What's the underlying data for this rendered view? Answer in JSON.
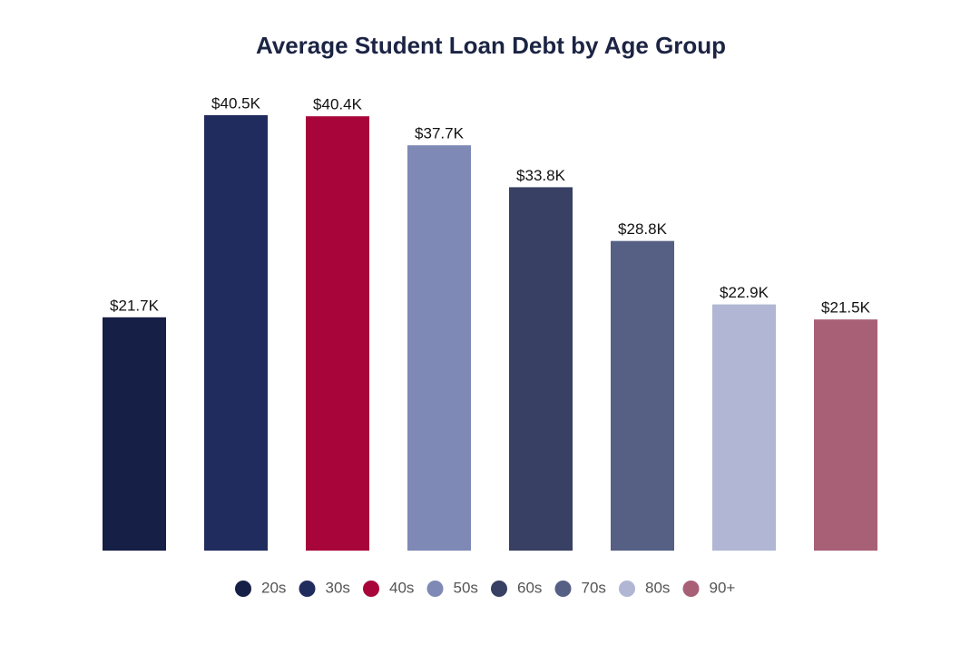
{
  "chart_data": {
    "type": "bar",
    "title": "Average Student Loan Debt by Age Group",
    "categories": [
      "20s",
      "30s",
      "40s",
      "50s",
      "60s",
      "70s",
      "80s",
      "90+"
    ],
    "values": [
      21.7,
      40.5,
      40.4,
      37.7,
      33.8,
      28.8,
      22.9,
      21.5
    ],
    "value_labels": [
      "$21.7K",
      "$40.5K",
      "$40.4K",
      "$37.7K",
      "$33.8K",
      "$28.8K",
      "$22.9K",
      "$21.5K"
    ],
    "colors": [
      "#161f45",
      "#212c5e",
      "#a8063a",
      "#7f89b5",
      "#384063",
      "#565f84",
      "#b0b6d4",
      "#a86077"
    ],
    "legend": "bottom"
  }
}
